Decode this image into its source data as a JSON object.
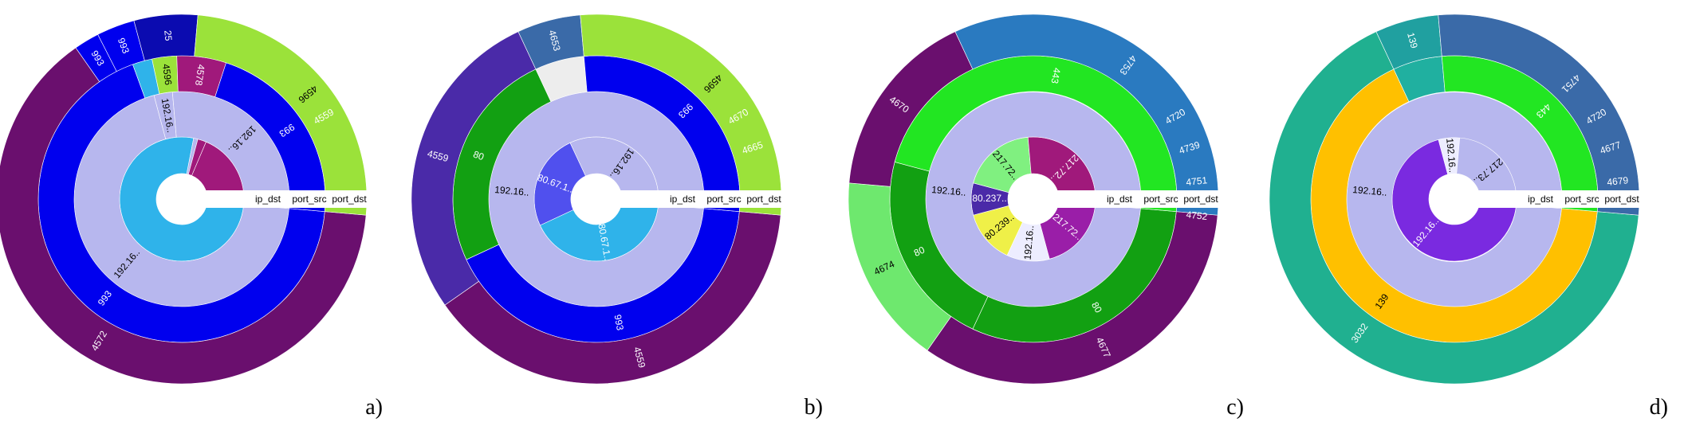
{
  "panels": [
    {
      "letter": "a)",
      "level_labels": [
        "ip_dst",
        "port_src",
        "port_dst"
      ],
      "rings": [
        [
          {
            "angle": 345,
            "color": "#2fb3ea"
          },
          {
            "angle": 5,
            "color": "#b7b7ee"
          },
          {
            "angle": 10,
            "color": "#a0197b"
          },
          {
            "angle": 90,
            "color": "#a0197b"
          }
        ],
        [
          {
            "angle": 250,
            "color": "#b7b7ee",
            "label": "192.16.."
          },
          {
            "angle": 10,
            "color": "#b7b7ee",
            "label": "192.16.."
          },
          {
            "angle": 100,
            "color": "#b7b7ee",
            "label": "192.16.."
          }
        ],
        [
          {
            "angle": 245,
            "color": "#0000ee",
            "label": "993"
          },
          {
            "angle": 8,
            "color": "#2fb3ea"
          },
          {
            "angle": 10,
            "color": "#9be23a",
            "label": "4596"
          },
          {
            "angle": 20,
            "color": "#a0197b",
            "label": "4578"
          },
          {
            "angle": 77,
            "color": "#0000ee",
            "label": "993"
          }
        ],
        [
          {
            "angle": 230,
            "color": "#6a0f6e",
            "label": "4572"
          },
          {
            "angle": 8,
            "color": "#0000ee",
            "label": "993"
          },
          {
            "angle": 12,
            "color": "#0000ee",
            "label": "993"
          },
          {
            "angle": 20,
            "color": "#0b0bb0",
            "label": "25"
          },
          {
            "angle": 90,
            "color": "#9be23a",
            "label": "4596"
          }
        ]
      ],
      "ring_edge_labels": [
        "4559"
      ]
    },
    {
      "letter": "b)",
      "level_labels": [
        "ip_dst",
        "port_src",
        "port_dst"
      ],
      "rings": [
        [
          {
            "angle": 150,
            "color": "#2fb3ea",
            "label": "80.67.1.."
          },
          {
            "angle": 90,
            "color": "#5050ee",
            "label": "80.67.1.."
          },
          {
            "angle": 120,
            "color": "#b7b7ee",
            "label": "192.16.."
          }
        ],
        [
          {
            "angle": 360,
            "color": "#b7b7ee",
            "label": "192.16.."
          }
        ],
        [
          {
            "angle": 150,
            "color": "#0000ee",
            "label": "993"
          },
          {
            "angle": 90,
            "color": "#12a012",
            "label": "80"
          },
          {
            "angle": 20,
            "color": "#ededed"
          },
          {
            "angle": 100,
            "color": "#0000ee",
            "label": "993"
          }
        ],
        [
          {
            "angle": 140,
            "color": "#6a0f6e",
            "label": "4559"
          },
          {
            "angle": 100,
            "color": "#4a2aa8",
            "label": "4559"
          },
          {
            "angle": 20,
            "color": "#3a6aa8",
            "label": "4653"
          },
          {
            "angle": 100,
            "color": "#9be23a",
            "label": "4596"
          }
        ]
      ],
      "ring_edge_labels": [
        "4670",
        "4665"
      ]
    },
    {
      "letter": "c)",
      "level_labels": [
        "ip_dst",
        "port_src",
        "port_dst"
      ],
      "rings": [
        [
          {
            "angle": 70,
            "color": "#9a1ea8",
            "label": "217.72.."
          },
          {
            "angle": 40,
            "color": "#ededff",
            "label": "192.16.."
          },
          {
            "angle": 50,
            "color": "#eff048",
            "label": "80.239.."
          },
          {
            "angle": 30,
            "color": "#4a2aa8",
            "label": "80.237.."
          },
          {
            "angle": 70,
            "color": "#80f080",
            "label": "217.72.."
          },
          {
            "angle": 100,
            "color": "#a0197b",
            "label": "217.72.."
          }
        ],
        [
          {
            "angle": 360,
            "color": "#b7b7ee",
            "label": "192.16.."
          }
        ],
        [
          {
            "angle": 110,
            "color": "#12a012",
            "label": "80"
          },
          {
            "angle": 80,
            "color": "#12a012",
            "label": "80"
          },
          {
            "angle": 170,
            "color": "#22e622",
            "label": "443"
          }
        ],
        [
          {
            "angle": 120,
            "color": "#6a0f6e",
            "label": "4677"
          },
          {
            "angle": 60,
            "color": "#6ee86e",
            "label": "4674"
          },
          {
            "angle": 60,
            "color": "#6a0f6e",
            "label": "4670"
          },
          {
            "angle": 120,
            "color": "#2a7ac0",
            "label": "4753"
          }
        ]
      ],
      "ring_edge_labels": [
        "4720",
        "4739",
        "4751",
        "4752"
      ]
    },
    {
      "letter": "d)",
      "level_labels": [
        "ip_dst",
        "port_src",
        "port_dst"
      ],
      "rings": [
        [
          {
            "angle": 250,
            "color": "#7a2ae0",
            "label": "192.16.."
          },
          {
            "angle": 20,
            "color": "#ededff",
            "label": "192.16.."
          },
          {
            "angle": 90,
            "color": "#b7b7ee",
            "label": "217.73.."
          }
        ],
        [
          {
            "angle": 360,
            "color": "#b7b7ee",
            "label": "192.16.."
          }
        ],
        [
          {
            "angle": 240,
            "color": "#ffc000",
            "label": "139"
          },
          {
            "angle": 20,
            "color": "#20b0a0"
          },
          {
            "angle": 100,
            "color": "#22e622",
            "label": "443"
          }
        ],
        [
          {
            "angle": 240,
            "color": "#20b090",
            "label": "3032"
          },
          {
            "angle": 20,
            "color": "#20a0a0",
            "label": "139"
          },
          {
            "angle": 100,
            "color": "#3a6aa8",
            "label": "4751"
          }
        ]
      ],
      "ring_edge_labels": [
        "4720",
        "4677",
        "4679"
      ]
    }
  ]
}
